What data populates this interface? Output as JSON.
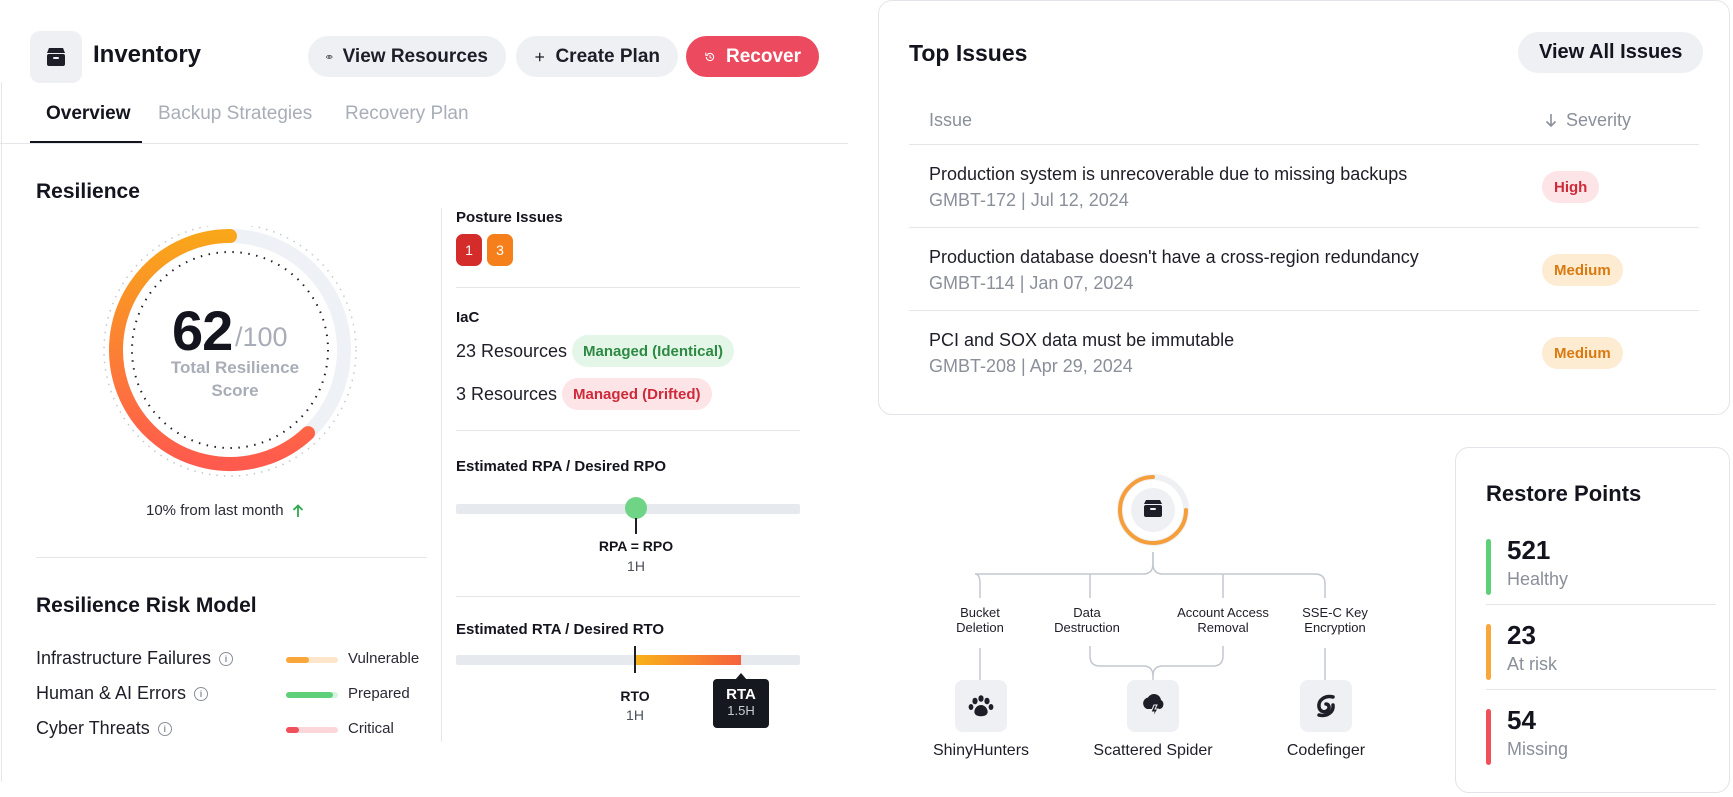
{
  "header": {
    "title": "Inventory",
    "icon": "box-icon",
    "buttons": {
      "view_resources": "View Resources",
      "create_plan": "Create Plan",
      "recover": "Recover"
    }
  },
  "tabs": {
    "overview": "Overview",
    "backup_strategies": "Backup Strategies",
    "recovery_plan": "Recovery Plan"
  },
  "resilience": {
    "title": "Resilience",
    "score": "62",
    "score_max": "/100",
    "score_label": "Total Resilience Score",
    "score_fraction": 0.62,
    "trend_text": "10% from last month",
    "colors": {
      "start": "#f9a61a",
      "end": "#ff5a4e",
      "track": "#eef1f6"
    }
  },
  "risk_model": {
    "title": "Resilience Risk Model",
    "rows": [
      {
        "label": "Infrastructure Failures",
        "level": "Vulnerable",
        "fill": 0.45,
        "color": "#f9a63a",
        "bg": "#fde6cc"
      },
      {
        "label": "Human & AI Errors",
        "level": "Prepared",
        "fill": 0.9,
        "color": "#5fd07a",
        "bg": "#d6f3dd"
      },
      {
        "label": "Cyber Threats",
        "level": "Critical",
        "fill": 0.25,
        "color": "#f0505a",
        "bg": "#fcd6d9"
      }
    ]
  },
  "posture": {
    "title": "Posture Issues",
    "badges": [
      "1",
      "3"
    ],
    "badge_colors": [
      "#d42b2b",
      "#f57f1a"
    ]
  },
  "iac": {
    "title": "IaC",
    "rows": [
      {
        "count": "23 Resources",
        "tag": "Managed (Identical)"
      },
      {
        "count": "3 Resources",
        "tag": "Managed (Drifted)"
      }
    ]
  },
  "rpa": {
    "title": "Estimated RPA / Desired RPO",
    "marker_label": "RPA = RPO",
    "marker_value": "1H"
  },
  "rta": {
    "title": "Estimated RTA / Desired RTO",
    "rto_label": "RTO",
    "rto_value": "1H",
    "rta_label": "RTA",
    "rta_value": "1.5H"
  },
  "top_issues": {
    "title": "Top Issues",
    "view_all": "View All Issues",
    "columns": {
      "issue": "Issue",
      "severity": "Severity"
    },
    "rows": [
      {
        "title": "Production system is unrecoverable due to missing backups",
        "meta": "GMBT-172 | Jul 12, 2024",
        "severity": "High"
      },
      {
        "title": "Production database doesn't have a cross-region redundancy",
        "meta": "GMBT-114 | Jan 07, 2024",
        "severity": "Medium"
      },
      {
        "title": "PCI and SOX data must be immutable",
        "meta": "GMBT-208 | Apr 29, 2024",
        "severity": "Medium"
      }
    ]
  },
  "threats": {
    "risks": [
      "Bucket Deletion",
      "Data Destruction",
      "Account Access Removal",
      "SSE-C Key Encryption"
    ],
    "actors": [
      {
        "name": "ShinyHunters",
        "icon": "paw-icon"
      },
      {
        "name": "Scattered Spider",
        "icon": "storm-cloud-icon"
      },
      {
        "name": "Codefinger",
        "icon": "swirl-icon"
      }
    ]
  },
  "restore_points": {
    "title": "Restore Points",
    "items": [
      {
        "value": "521",
        "label": "Healthy",
        "color": "#5fd07a"
      },
      {
        "value": "23",
        "label": "At risk",
        "color": "#f9a63a"
      },
      {
        "value": "54",
        "label": "Missing",
        "color": "#f0505a"
      }
    ]
  }
}
